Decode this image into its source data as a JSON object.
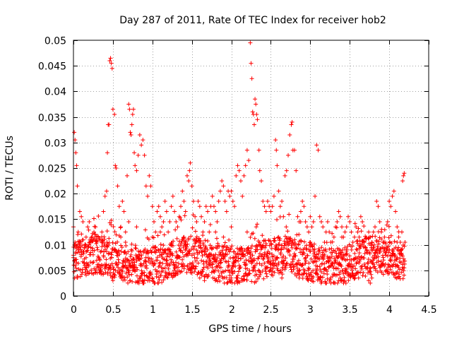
{
  "chart_data": {
    "type": "scatter",
    "title": "Day 287 of 2011, Rate Of TEC Index for receiver hob2",
    "xlabel": "GPS time / hours",
    "ylabel": "ROTI / TECUs",
    "xlim": [
      0,
      4.5
    ],
    "ylim": [
      0,
      0.05
    ],
    "x_ticks": [
      0,
      0.5,
      1,
      1.5,
      2,
      2.5,
      3,
      3.5,
      4,
      4.5
    ],
    "x_tick_labels": [
      "0",
      "0.5",
      "1",
      "1.5",
      "2",
      "2.5",
      "3",
      "3.5",
      "4",
      "4.5"
    ],
    "y_ticks": [
      0,
      0.005,
      0.01,
      0.015,
      0.02,
      0.025,
      0.03,
      0.035,
      0.04,
      0.045,
      0.05
    ],
    "y_tick_labels": [
      "0",
      "0.005",
      "0.01",
      "0.015",
      "0.02",
      "0.025",
      "0.03",
      "0.035",
      "0.04",
      "0.045",
      "0.05"
    ],
    "grid": true,
    "marker": "+",
    "marker_color": "#ff0000",
    "series": [
      {
        "name": "ROTI",
        "points": [
          [
            0.0,
            0.0135
          ],
          [
            0.01,
            0.032
          ],
          [
            0.02,
            0.0305
          ],
          [
            0.03,
            0.028
          ],
          [
            0.04,
            0.0255
          ],
          [
            0.05,
            0.0215
          ],
          [
            0.0,
            0.0075
          ],
          [
            0.02,
            0.0095
          ],
          [
            0.04,
            0.0065
          ],
          [
            0.06,
            0.0125
          ],
          [
            0.08,
            0.0165
          ],
          [
            0.1,
            0.0155
          ],
          [
            0.12,
            0.0145
          ],
          [
            0.14,
            0.0095
          ],
          [
            0.16,
            0.0075
          ],
          [
            0.18,
            0.0135
          ],
          [
            0.2,
            0.0145
          ],
          [
            0.22,
            0.0085
          ],
          [
            0.24,
            0.0065
          ],
          [
            0.26,
            0.0125
          ],
          [
            0.28,
            0.0135
          ],
          [
            0.3,
            0.0095
          ],
          [
            0.32,
            0.0075
          ],
          [
            0.34,
            0.0055
          ],
          [
            0.36,
            0.0105
          ],
          [
            0.38,
            0.0165
          ],
          [
            0.4,
            0.0195
          ],
          [
            0.42,
            0.0205
          ],
          [
            0.43,
            0.028
          ],
          [
            0.44,
            0.0335
          ],
          [
            0.45,
            0.0335
          ],
          [
            0.46,
            0.046
          ],
          [
            0.47,
            0.0465
          ],
          [
            0.48,
            0.0455
          ],
          [
            0.49,
            0.0445
          ],
          [
            0.5,
            0.0365
          ],
          [
            0.52,
            0.0355
          ],
          [
            0.53,
            0.0255
          ],
          [
            0.54,
            0.025
          ],
          [
            0.56,
            0.0215
          ],
          [
            0.58,
            0.0175
          ],
          [
            0.6,
            0.0135
          ],
          [
            0.62,
            0.0185
          ],
          [
            0.64,
            0.0165
          ],
          [
            0.66,
            0.0105
          ],
          [
            0.68,
            0.0235
          ],
          [
            0.7,
            0.0375
          ],
          [
            0.71,
            0.0365
          ],
          [
            0.72,
            0.032
          ],
          [
            0.73,
            0.0315
          ],
          [
            0.74,
            0.0335
          ],
          [
            0.75,
            0.0355
          ],
          [
            0.76,
            0.0365
          ],
          [
            0.77,
            0.028
          ],
          [
            0.78,
            0.0255
          ],
          [
            0.8,
            0.0245
          ],
          [
            0.82,
            0.0275
          ],
          [
            0.84,
            0.0315
          ],
          [
            0.86,
            0.0295
          ],
          [
            0.88,
            0.0305
          ],
          [
            0.9,
            0.0275
          ],
          [
            0.92,
            0.0215
          ],
          [
            0.94,
            0.0195
          ],
          [
            0.96,
            0.0235
          ],
          [
            0.98,
            0.0215
          ],
          [
            1.0,
            0.0175
          ],
          [
            1.02,
            0.0145
          ],
          [
            1.04,
            0.0125
          ],
          [
            1.06,
            0.0165
          ],
          [
            1.08,
            0.0175
          ],
          [
            1.1,
            0.0155
          ],
          [
            1.12,
            0.0135
          ],
          [
            1.14,
            0.0145
          ],
          [
            1.16,
            0.0185
          ],
          [
            1.18,
            0.0165
          ],
          [
            1.2,
            0.0125
          ],
          [
            1.22,
            0.0145
          ],
          [
            1.24,
            0.0175
          ],
          [
            1.26,
            0.0195
          ],
          [
            1.28,
            0.0165
          ],
          [
            1.3,
            0.0145
          ],
          [
            1.32,
            0.0135
          ],
          [
            1.34,
            0.0155
          ],
          [
            1.36,
            0.0175
          ],
          [
            1.38,
            0.0205
          ],
          [
            1.4,
            0.0185
          ],
          [
            1.42,
            0.0165
          ],
          [
            1.44,
            0.0235
          ],
          [
            1.46,
            0.0225
          ],
          [
            1.47,
            0.0245
          ],
          [
            1.48,
            0.026
          ],
          [
            1.5,
            0.0215
          ],
          [
            1.52,
            0.0185
          ],
          [
            1.54,
            0.0155
          ],
          [
            1.56,
            0.0145
          ],
          [
            1.58,
            0.0185
          ],
          [
            1.6,
            0.0175
          ],
          [
            1.62,
            0.0155
          ],
          [
            1.64,
            0.0125
          ],
          [
            1.66,
            0.0145
          ],
          [
            1.68,
            0.0175
          ],
          [
            1.7,
            0.0165
          ],
          [
            1.72,
            0.0125
          ],
          [
            1.74,
            0.0175
          ],
          [
            1.76,
            0.0195
          ],
          [
            1.78,
            0.0175
          ],
          [
            1.8,
            0.0165
          ],
          [
            1.82,
            0.0145
          ],
          [
            1.84,
            0.0185
          ],
          [
            1.86,
            0.0205
          ],
          [
            1.88,
            0.0225
          ],
          [
            1.9,
            0.0215
          ],
          [
            1.92,
            0.0185
          ],
          [
            1.94,
            0.0165
          ],
          [
            1.96,
            0.0205
          ],
          [
            1.98,
            0.0195
          ],
          [
            2.0,
            0.0205
          ],
          [
            2.02,
            0.0185
          ],
          [
            2.04,
            0.0175
          ],
          [
            2.06,
            0.0235
          ],
          [
            2.08,
            0.0255
          ],
          [
            2.1,
            0.0245
          ],
          [
            2.12,
            0.0225
          ],
          [
            2.14,
            0.0195
          ],
          [
            2.16,
            0.0235
          ],
          [
            2.18,
            0.0255
          ],
          [
            2.2,
            0.0285
          ],
          [
            2.22,
            0.0265
          ],
          [
            2.24,
            0.0495
          ],
          [
            2.25,
            0.0455
          ],
          [
            2.26,
            0.0425
          ],
          [
            2.27,
            0.036
          ],
          [
            2.28,
            0.0355
          ],
          [
            2.29,
            0.0335
          ],
          [
            2.3,
            0.0385
          ],
          [
            2.31,
            0.0375
          ],
          [
            2.32,
            0.0355
          ],
          [
            2.33,
            0.0345
          ],
          [
            2.35,
            0.0285
          ],
          [
            2.36,
            0.0245
          ],
          [
            2.38,
            0.0225
          ],
          [
            2.4,
            0.0185
          ],
          [
            2.42,
            0.0175
          ],
          [
            2.44,
            0.0165
          ],
          [
            2.46,
            0.0185
          ],
          [
            2.48,
            0.0175
          ],
          [
            2.5,
            0.0165
          ],
          [
            2.52,
            0.0175
          ],
          [
            2.54,
            0.0195
          ],
          [
            2.56,
            0.0305
          ],
          [
            2.57,
            0.0285
          ],
          [
            2.58,
            0.0255
          ],
          [
            2.6,
            0.0205
          ],
          [
            2.62,
            0.0175
          ],
          [
            2.64,
            0.0185
          ],
          [
            2.66,
            0.0155
          ],
          [
            2.68,
            0.0235
          ],
          [
            2.7,
            0.0245
          ],
          [
            2.72,
            0.0275
          ],
          [
            2.74,
            0.0315
          ],
          [
            2.76,
            0.0335
          ],
          [
            2.77,
            0.034
          ],
          [
            2.78,
            0.0285
          ],
          [
            2.8,
            0.0285
          ],
          [
            2.82,
            0.0245
          ],
          [
            2.84,
            0.0155
          ],
          [
            2.86,
            0.0145
          ],
          [
            2.88,
            0.0165
          ],
          [
            2.9,
            0.0185
          ],
          [
            2.92,
            0.0175
          ],
          [
            2.94,
            0.0145
          ],
          [
            2.96,
            0.0135
          ],
          [
            2.98,
            0.0125
          ],
          [
            3.0,
            0.0155
          ],
          [
            3.02,
            0.0135
          ],
          [
            3.04,
            0.0145
          ],
          [
            3.06,
            0.0195
          ],
          [
            3.08,
            0.0295
          ],
          [
            3.1,
            0.0285
          ],
          [
            3.12,
            0.0155
          ],
          [
            3.14,
            0.0145
          ],
          [
            3.16,
            0.0135
          ],
          [
            3.18,
            0.0105
          ],
          [
            3.2,
            0.0125
          ],
          [
            3.22,
            0.0145
          ],
          [
            3.24,
            0.0125
          ],
          [
            3.26,
            0.0105
          ],
          [
            3.28,
            0.0085
          ],
          [
            3.3,
            0.0115
          ],
          [
            3.32,
            0.0135
          ],
          [
            3.34,
            0.0145
          ],
          [
            3.36,
            0.0165
          ],
          [
            3.38,
            0.0155
          ],
          [
            3.4,
            0.0135
          ],
          [
            3.42,
            0.0115
          ],
          [
            3.44,
            0.0125
          ],
          [
            3.46,
            0.0135
          ],
          [
            3.48,
            0.0155
          ],
          [
            3.5,
            0.0145
          ],
          [
            3.52,
            0.0125
          ],
          [
            3.54,
            0.0105
          ],
          [
            3.56,
            0.0115
          ],
          [
            3.58,
            0.0135
          ],
          [
            3.6,
            0.0125
          ],
          [
            3.62,
            0.0115
          ],
          [
            3.64,
            0.0155
          ],
          [
            3.66,
            0.0145
          ],
          [
            3.68,
            0.0105
          ],
          [
            3.7,
            0.0095
          ],
          [
            3.72,
            0.0085
          ],
          [
            3.74,
            0.0125
          ],
          [
            3.76,
            0.0115
          ],
          [
            3.78,
            0.0105
          ],
          [
            3.8,
            0.0095
          ],
          [
            3.82,
            0.0135
          ],
          [
            3.84,
            0.0185
          ],
          [
            3.86,
            0.0175
          ],
          [
            3.88,
            0.0145
          ],
          [
            3.9,
            0.0125
          ],
          [
            3.92,
            0.0105
          ],
          [
            3.94,
            0.0115
          ],
          [
            3.96,
            0.0095
          ],
          [
            3.98,
            0.0145
          ],
          [
            4.0,
            0.0185
          ],
          [
            4.02,
            0.0175
          ],
          [
            4.04,
            0.0195
          ],
          [
            4.06,
            0.0205
          ],
          [
            4.08,
            0.0165
          ],
          [
            4.1,
            0.0135
          ],
          [
            4.12,
            0.0115
          ],
          [
            4.14,
            0.0105
          ],
          [
            4.16,
            0.0125
          ],
          [
            4.17,
            0.0225
          ],
          [
            4.18,
            0.0235
          ],
          [
            4.19,
            0.024
          ],
          [
            4.2,
            0.0105
          ],
          [
            0.3,
            0.0045
          ],
          [
            0.5,
            0.003
          ],
          [
            0.49,
            0.0035
          ],
          [
            1.6,
            0.0035
          ],
          [
            1.66,
            0.003
          ],
          [
            2.08,
            0.0035
          ],
          [
            2.64,
            0.0035
          ],
          [
            2.86,
            0.0035
          ],
          [
            3.36,
            0.003
          ],
          [
            3.38,
            0.0035
          ],
          [
            3.74,
            0.003
          ],
          [
            3.76,
            0.0025
          ],
          [
            3.78,
            0.0035
          ],
          [
            4.0,
            0.0045
          ],
          [
            1.98,
            0.004
          ],
          [
            2.3,
            0.004
          ],
          [
            0.86,
            0.004
          ],
          [
            1.24,
            0.004
          ],
          [
            0.6,
            0.0115
          ],
          [
            0.66,
            0.0125
          ],
          [
            0.8,
            0.0135
          ],
          [
            1.0,
            0.0115
          ],
          [
            1.4,
            0.0115
          ],
          [
            1.8,
            0.0125
          ],
          [
            2.0,
            0.0135
          ],
          [
            2.2,
            0.0125
          ],
          [
            2.6,
            0.0115
          ],
          [
            3.0,
            0.0105
          ],
          [
            3.4,
            0.0115
          ],
          [
            3.8,
            0.0125
          ],
          [
            4.1,
            0.0105
          ],
          [
            0.16,
            0.0115
          ],
          [
            0.36,
            0.0125
          ],
          [
            0.7,
            0.0145
          ],
          [
            1.1,
            0.0125
          ],
          [
            1.9,
            0.0115
          ]
        ]
      }
    ]
  }
}
